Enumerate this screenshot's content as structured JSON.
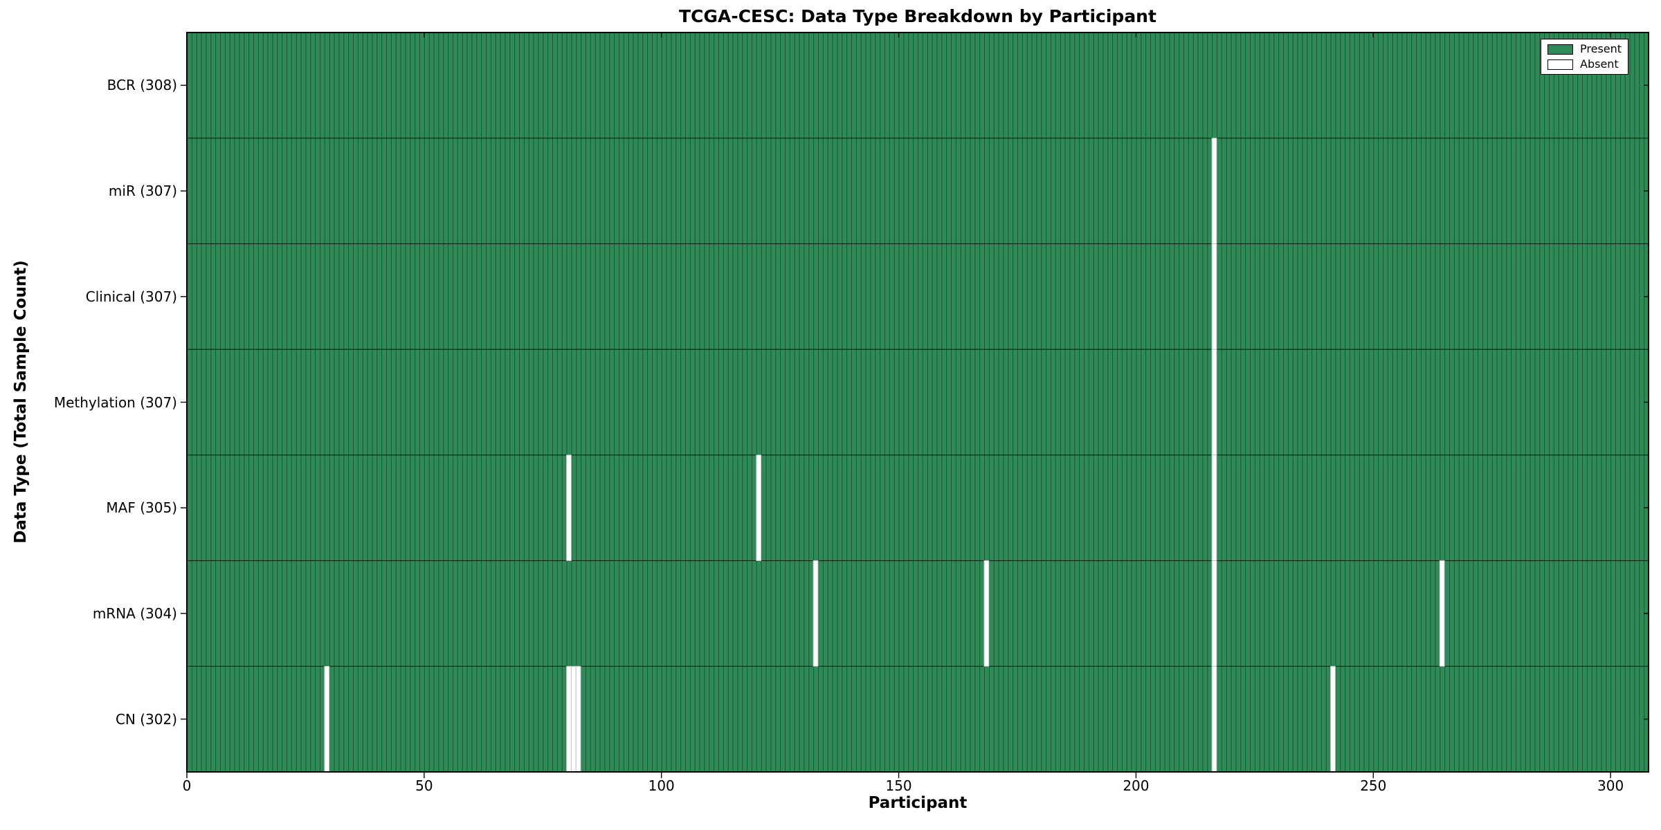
{
  "chart_data": {
    "type": "heatmap",
    "title": "TCGA-CESC: Data Type Breakdown by Participant",
    "xlabel": "Participant",
    "ylabel": "Data Type (Total Sample Count)",
    "x_axis": {
      "min": 0,
      "max": 308,
      "ticks": [
        0,
        50,
        100,
        150,
        200,
        250,
        300
      ]
    },
    "n_participants": 308,
    "rows": [
      {
        "label": "BCR (308)",
        "data_type": "BCR",
        "total_samples": 308,
        "absent_participants": []
      },
      {
        "label": "miR (307)",
        "data_type": "miR",
        "total_samples": 307,
        "absent_participants": [
          216
        ]
      },
      {
        "label": "Clinical (307)",
        "data_type": "Clinical",
        "total_samples": 307,
        "absent_participants": [
          216
        ]
      },
      {
        "label": "Methylation (307)",
        "data_type": "Methylation",
        "total_samples": 307,
        "absent_participants": [
          216
        ]
      },
      {
        "label": "MAF (305)",
        "data_type": "MAF",
        "total_samples": 305,
        "absent_participants": [
          80,
          120,
          216
        ]
      },
      {
        "label": "mRNA (304)",
        "data_type": "mRNA",
        "total_samples": 304,
        "absent_participants": [
          132,
          168,
          216,
          264
        ]
      },
      {
        "label": "CN (302)",
        "data_type": "CN",
        "total_samples": 302,
        "absent_participants": [
          29,
          80,
          81,
          82,
          216,
          241
        ]
      }
    ],
    "legend": {
      "position": "upper right",
      "entries": [
        {
          "label": "Present",
          "color": "#2e8b57"
        },
        {
          "label": "Absent",
          "color": "#ffffff"
        }
      ]
    },
    "colors": {
      "present": "#2e8b57",
      "absent": "#ffffff",
      "bar_edge": "#1d5434",
      "absent_edge": "#c2c2c2",
      "axis": "#000000"
    },
    "grid": "row-separators-only"
  }
}
